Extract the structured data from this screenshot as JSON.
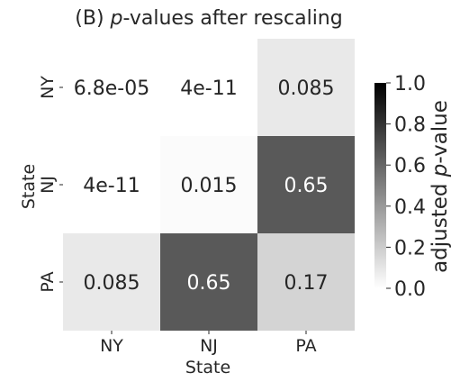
{
  "chart_data": {
    "type": "heatmap",
    "title_prefix": "(B) ",
    "title_italic": "p",
    "title_suffix": "-values after rescaling",
    "xlabel": "State",
    "ylabel": "State",
    "x_categories": [
      "NY",
      "NJ",
      "PA"
    ],
    "y_categories": [
      "NY",
      "NJ",
      "PA"
    ],
    "values": [
      [
        6.8e-05,
        4e-11,
        0.085
      ],
      [
        4e-11,
        0.015,
        0.65
      ],
      [
        0.085,
        0.65,
        0.17
      ]
    ],
    "labels": [
      [
        "6.8e-05",
        "4e-11",
        "0.085"
      ],
      [
        "4e-11",
        "0.015",
        "0.65"
      ],
      [
        "0.085",
        "0.65",
        "0.17"
      ]
    ],
    "colorbar": {
      "label_prefix": "adjusted ",
      "label_italic": "p",
      "label_suffix": "-value",
      "range": [
        0.0,
        1.0
      ],
      "ticks": [
        "0.0",
        "0.2",
        "0.4",
        "0.6",
        "0.8",
        "1.0"
      ]
    },
    "colormap": {
      "low": "#ffffff",
      "high": "#000000"
    }
  }
}
